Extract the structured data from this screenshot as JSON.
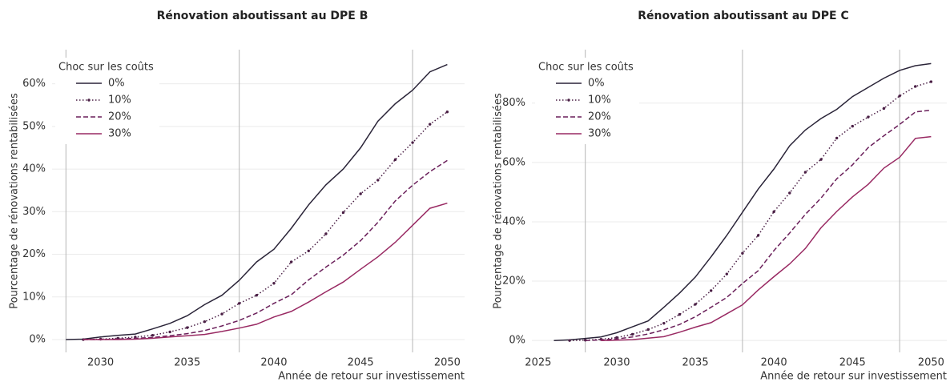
{
  "chart_data": [
    {
      "type": "line",
      "title": "Rénovation aboutissant au DPE B",
      "xlabel": "Année de retour sur investissement",
      "ylabel": "Pourcentage de rénovations rentabilisées",
      "legend_title": "Choc sur les coûts",
      "legend": "upper left",
      "grid": true,
      "xlim": [
        2027.2,
        2051
      ],
      "ylim": [
        -3,
        68
      ],
      "xticks": [
        2030,
        2035,
        2040,
        2045,
        2050
      ],
      "yticks": [
        {
          "value": 0,
          "label": "0%"
        },
        {
          "value": 10,
          "label": "10%"
        },
        {
          "value": 20,
          "label": "20%"
        },
        {
          "value": 30,
          "label": "30%"
        },
        {
          "value": 40,
          "label": "40%"
        },
        {
          "value": 50,
          "label": "50%"
        },
        {
          "value": 60,
          "label": "60%"
        }
      ],
      "vlines": [
        2028,
        2038,
        2048
      ],
      "vline_color": "#b5b5b5",
      "series": [
        {
          "name": "0%",
          "color": "#2a2438",
          "dash": "solid",
          "x": [
            2028,
            2029,
            2030,
            2031,
            2032,
            2033,
            2034,
            2035,
            2036,
            2037,
            2038,
            2039,
            2040,
            2041,
            2042,
            2043,
            2044,
            2045,
            2046,
            2047,
            2048,
            2049,
            2050
          ],
          "values": [
            0,
            0.1,
            0.6,
            1.0,
            1.3,
            2.5,
            3.8,
            5.6,
            8.2,
            10.4,
            13.9,
            18.2,
            21.2,
            26.1,
            31.6,
            36.3,
            40.0,
            45.0,
            51.2,
            55.3,
            58.5,
            62.8,
            64.5
          ]
        },
        {
          "name": "10%",
          "color": "#4a1f45",
          "dash": "dotted",
          "x": [
            2029,
            2030,
            2031,
            2032,
            2033,
            2034,
            2035,
            2036,
            2037,
            2038,
            2039,
            2040,
            2041,
            2042,
            2043,
            2044,
            2045,
            2046,
            2047,
            2048,
            2049,
            2050
          ],
          "values": [
            0,
            0.1,
            0.3,
            0.6,
            1.0,
            1.8,
            2.8,
            4.2,
            6.0,
            8.5,
            10.4,
            13.2,
            18.2,
            20.8,
            24.8,
            29.8,
            34.2,
            37.4,
            42.2,
            46.2,
            50.5,
            53.4
          ]
        },
        {
          "name": "20%",
          "color": "#6a1f5a",
          "dash": "dashed",
          "x": [
            2029,
            2030,
            2031,
            2032,
            2033,
            2034,
            2035,
            2036,
            2037,
            2038,
            2039,
            2040,
            2041,
            2042,
            2043,
            2044,
            2045,
            2046,
            2047,
            2048,
            2049,
            2050
          ],
          "values": [
            0,
            0,
            0.1,
            0.3,
            0.5,
            0.9,
            1.4,
            2.1,
            3.2,
            4.5,
            6.2,
            8.5,
            10.5,
            14.0,
            17.0,
            19.8,
            23.2,
            27.5,
            32.5,
            36.2,
            39.4,
            42.0
          ]
        },
        {
          "name": "30%",
          "color": "#992a63",
          "dash": "solid",
          "x": [
            2029,
            2030,
            2031,
            2032,
            2033,
            2034,
            2035,
            2036,
            2037,
            2038,
            2039,
            2040,
            2041,
            2042,
            2043,
            2044,
            2045,
            2046,
            2047,
            2048,
            2049,
            2050
          ],
          "values": [
            0,
            0,
            0,
            0.1,
            0.3,
            0.6,
            0.9,
            1.2,
            1.9,
            2.7,
            3.6,
            5.3,
            6.6,
            8.8,
            11.2,
            13.5,
            16.5,
            19.4,
            22.8,
            26.8,
            30.8,
            32.0
          ]
        }
      ]
    },
    {
      "type": "line",
      "title": "Rénovation aboutissant au DPE C",
      "xlabel": "Année de retour sur investissement",
      "ylabel": "Pourcentage de rénovations rentabilisées",
      "legend_title": "Choc sur les coûts",
      "legend": "upper left",
      "grid": true,
      "xlim": [
        2024.6,
        2051
      ],
      "ylim": [
        -4,
        98
      ],
      "xticks": [
        2025,
        2030,
        2035,
        2040,
        2045,
        2050
      ],
      "yticks": [
        {
          "value": 0,
          "label": "0%"
        },
        {
          "value": 20,
          "label": "20%"
        },
        {
          "value": 40,
          "label": "40%"
        },
        {
          "value": 60,
          "label": "60%"
        },
        {
          "value": 80,
          "label": "80%"
        }
      ],
      "vlines": [
        2028,
        2038,
        2048
      ],
      "vline_color": "#b5b5b5",
      "series": [
        {
          "name": "0%",
          "color": "#2a2438",
          "dash": "solid",
          "x": [
            2026,
            2027,
            2028,
            2029,
            2030,
            2031,
            2032,
            2033,
            2034,
            2035,
            2036,
            2037,
            2038,
            2039,
            2040,
            2041,
            2042,
            2043,
            2044,
            2045,
            2046,
            2047,
            2048,
            2049,
            2050
          ],
          "values": [
            0,
            0.2,
            0.7,
            1.2,
            2.6,
            4.6,
            6.6,
            11.2,
            16.0,
            21.4,
            28.2,
            35.4,
            43.2,
            51.0,
            57.8,
            65.6,
            70.9,
            74.8,
            77.9,
            82.2,
            85.3,
            88.4,
            91.0,
            92.6,
            93.3
          ]
        },
        {
          "name": "10%",
          "color": "#4a1f45",
          "dash": "dotted",
          "x": [
            2027,
            2028,
            2029,
            2030,
            2031,
            2032,
            2033,
            2034,
            2035,
            2036,
            2037,
            2038,
            2039,
            2040,
            2041,
            2042,
            2043,
            2044,
            2045,
            2046,
            2047,
            2048,
            2049,
            2050
          ],
          "values": [
            0,
            0.1,
            0.4,
            1.0,
            2.1,
            3.7,
            5.8,
            8.8,
            12.2,
            16.8,
            22.4,
            29.4,
            35.4,
            43.4,
            49.7,
            56.7,
            61.0,
            68.2,
            72.2,
            75.3,
            78.2,
            82.4,
            85.6,
            87.2
          ]
        },
        {
          "name": "20%",
          "color": "#6a1f5a",
          "dash": "dashed",
          "x": [
            2028,
            2029,
            2030,
            2031,
            2032,
            2033,
            2034,
            2035,
            2036,
            2037,
            2038,
            2039,
            2040,
            2041,
            2042,
            2043,
            2044,
            2045,
            2046,
            2047,
            2048,
            2049,
            2050
          ],
          "values": [
            0,
            0.2,
            0.5,
            1.2,
            2.2,
            3.6,
            5.4,
            8.0,
            11.2,
            14.5,
            19.2,
            23.5,
            30.3,
            36.2,
            42.5,
            48.0,
            54.5,
            59.2,
            65.0,
            69.0,
            72.8,
            77.0,
            77.6
          ]
        },
        {
          "name": "30%",
          "color": "#992a63",
          "dash": "solid",
          "x": [
            2029,
            2030,
            2031,
            2032,
            2033,
            2034,
            2035,
            2036,
            2037,
            2038,
            2039,
            2040,
            2041,
            2042,
            2043,
            2044,
            2045,
            2046,
            2047,
            2048,
            2049,
            2050
          ],
          "values": [
            0,
            0.1,
            0.3,
            0.8,
            1.3,
            2.8,
            4.5,
            6.0,
            9.0,
            12.0,
            17.0,
            21.5,
            25.8,
            31.0,
            38.0,
            43.5,
            48.4,
            52.6,
            58.1,
            61.7,
            68.1,
            68.7
          ]
        }
      ]
    }
  ]
}
